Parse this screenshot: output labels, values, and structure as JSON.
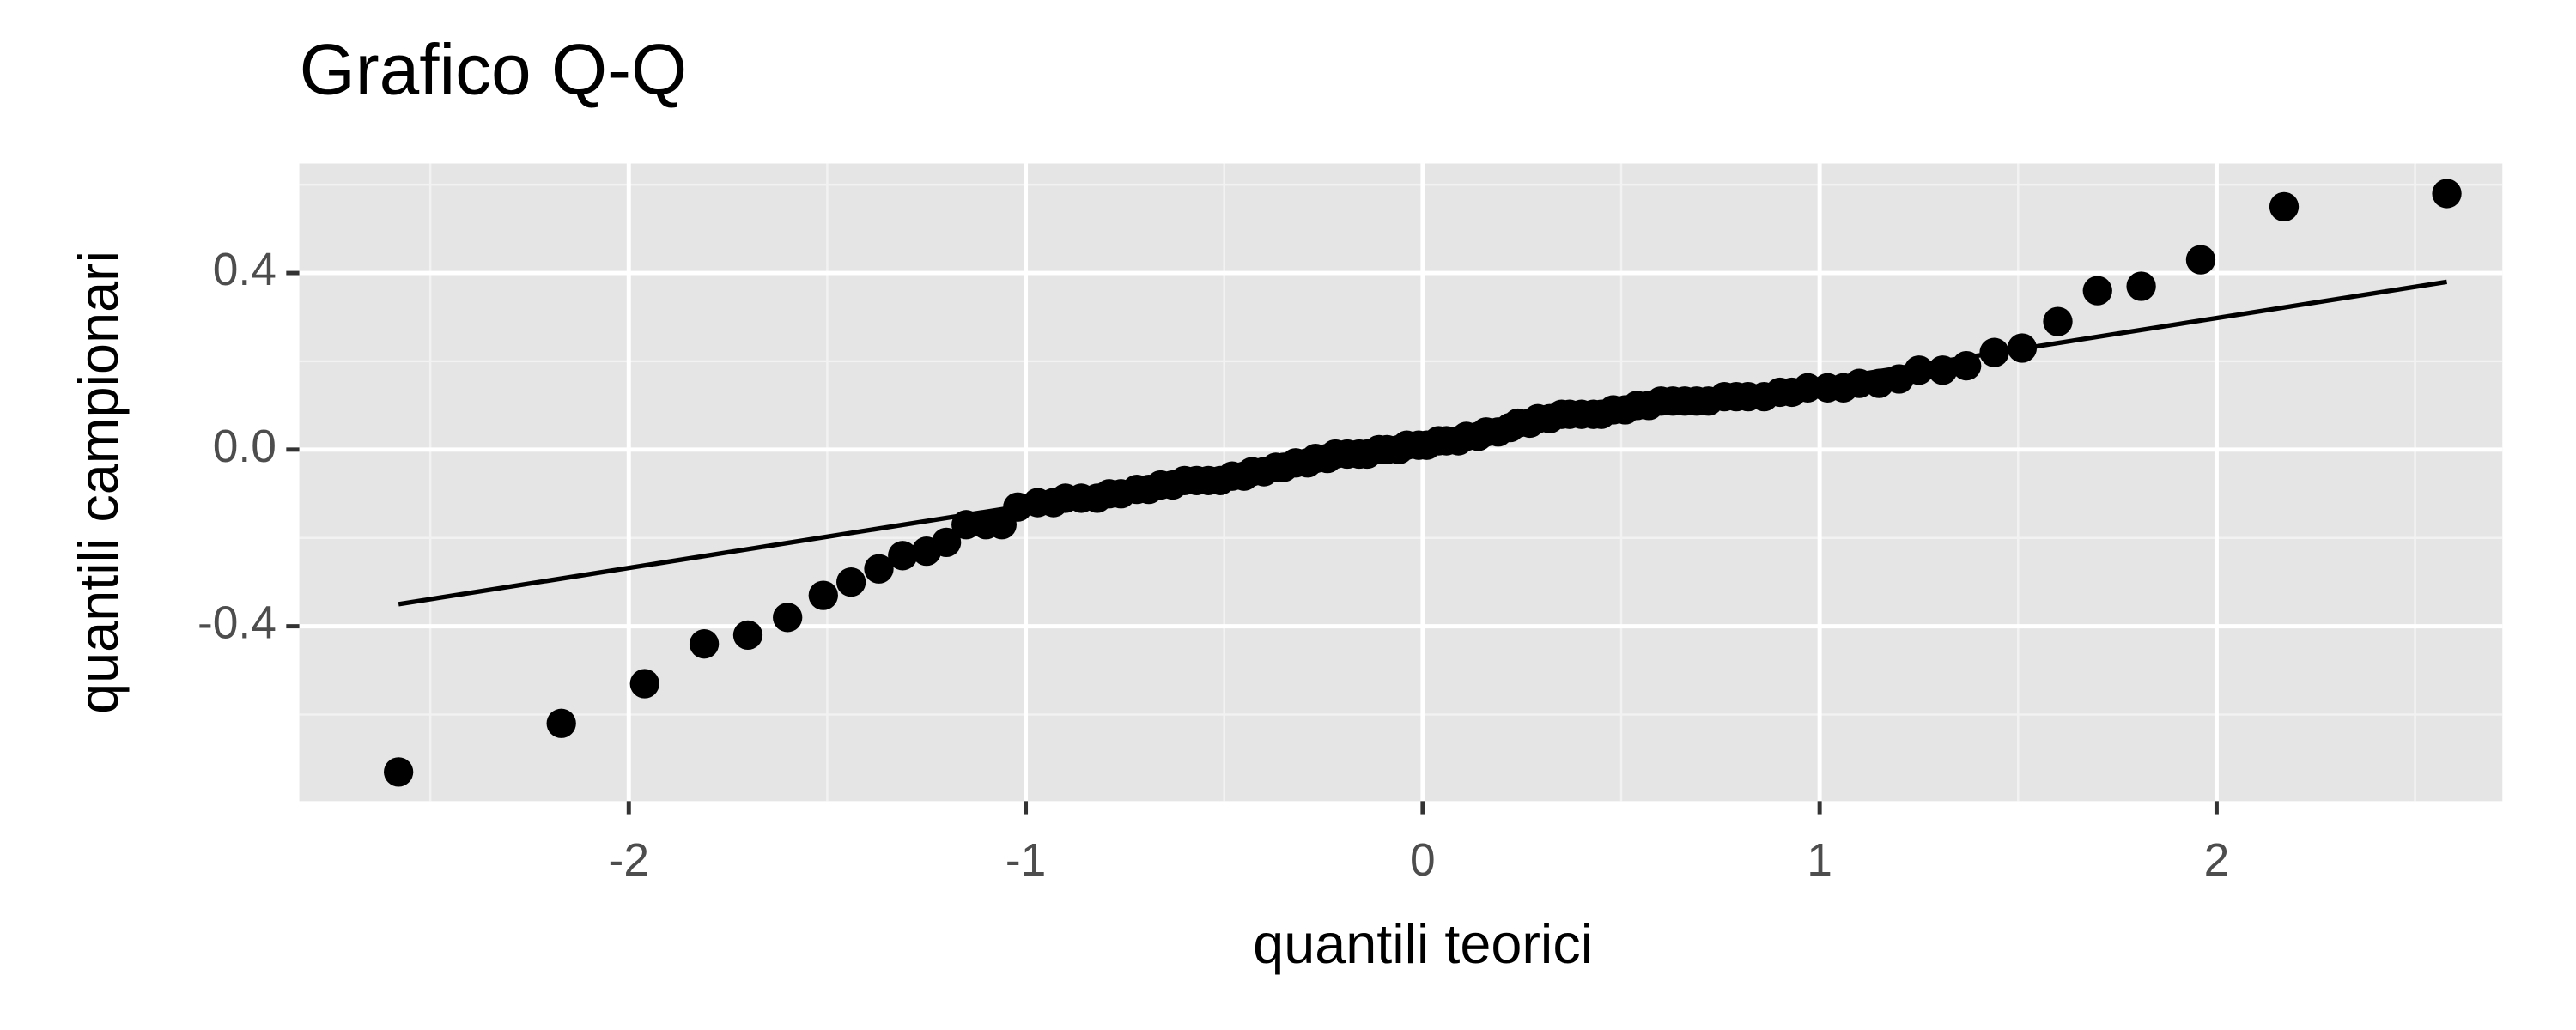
{
  "chart_data": {
    "type": "scatter",
    "title": "Grafico Q-Q",
    "x_label": "quantili teorici",
    "y_label": "quantili campionari",
    "xlim": [
      -2.83,
      2.72
    ],
    "ylim": [
      -0.796,
      0.648
    ],
    "xticks": [
      -2,
      -1,
      0,
      1,
      2
    ],
    "yticks": [
      -0.4,
      {
        "value": 0,
        "label": "0.0"
      },
      0.4
    ],
    "x_minor_grid": [
      -2.5,
      -1.5,
      -0.5,
      0.5,
      1.5,
      2.5
    ],
    "y_minor_grid": [
      -0.6,
      -0.2,
      0.2,
      0.6
    ],
    "grid": true,
    "color": "#000000",
    "x": [
      -2.58,
      -2.17,
      -1.96,
      -1.81,
      -1.7,
      -1.6,
      -1.51,
      -1.44,
      -1.37,
      -1.31,
      -1.25,
      -1.2,
      -1.15,
      -1.1,
      -1.06,
      -1.02,
      -0.97,
      -0.93,
      -0.9,
      -0.86,
      -0.82,
      -0.79,
      -0.76,
      -0.72,
      -0.69,
      -0.66,
      -0.63,
      -0.6,
      -0.57,
      -0.54,
      -0.51,
      -0.48,
      -0.45,
      -0.43,
      -0.4,
      -0.37,
      -0.35,
      -0.32,
      -0.29,
      -0.27,
      -0.24,
      -0.22,
      -0.19,
      -0.16,
      -0.14,
      -0.11,
      -0.09,
      -0.06,
      -0.04,
      -0.01,
      0.01,
      0.04,
      0.06,
      0.09,
      0.11,
      0.14,
      0.16,
      0.19,
      0.22,
      0.24,
      0.27,
      0.29,
      0.32,
      0.35,
      0.37,
      0.4,
      0.43,
      0.45,
      0.48,
      0.51,
      0.54,
      0.57,
      0.6,
      0.63,
      0.66,
      0.69,
      0.72,
      0.76,
      0.79,
      0.82,
      0.86,
      0.9,
      0.93,
      0.97,
      1.02,
      1.06,
      1.1,
      1.15,
      1.2,
      1.25,
      1.31,
      1.37,
      1.44,
      1.51,
      1.6,
      1.7,
      1.81,
      1.96,
      2.17,
      2.58
    ],
    "values": [
      -0.73,
      -0.62,
      -0.53,
      -0.44,
      -0.42,
      -0.38,
      -0.33,
      -0.3,
      -0.27,
      -0.24,
      -0.23,
      -0.21,
      -0.17,
      -0.17,
      -0.17,
      -0.13,
      -0.12,
      -0.12,
      -0.11,
      -0.11,
      -0.11,
      -0.1,
      -0.1,
      -0.09,
      -0.09,
      -0.08,
      -0.08,
      -0.07,
      -0.07,
      -0.07,
      -0.07,
      -0.06,
      -0.06,
      -0.05,
      -0.05,
      -0.04,
      -0.04,
      -0.03,
      -0.03,
      -0.02,
      -0.02,
      -0.01,
      -0.01,
      -0.01,
      -0.01,
      0.0,
      0.0,
      0.0,
      0.01,
      0.01,
      0.01,
      0.02,
      0.02,
      0.02,
      0.03,
      0.03,
      0.04,
      0.04,
      0.05,
      0.06,
      0.06,
      0.07,
      0.07,
      0.08,
      0.08,
      0.08,
      0.08,
      0.08,
      0.09,
      0.09,
      0.1,
      0.1,
      0.11,
      0.11,
      0.11,
      0.11,
      0.11,
      0.12,
      0.12,
      0.12,
      0.12,
      0.13,
      0.13,
      0.14,
      0.14,
      0.14,
      0.15,
      0.15,
      0.16,
      0.18,
      0.18,
      0.19,
      0.22,
      0.23,
      0.29,
      0.36,
      0.37,
      0.43,
      0.55,
      0.58
    ],
    "reference_line": {
      "x": [
        -2.58,
        2.58
      ],
      "y": [
        -0.35,
        0.38
      ]
    }
  }
}
